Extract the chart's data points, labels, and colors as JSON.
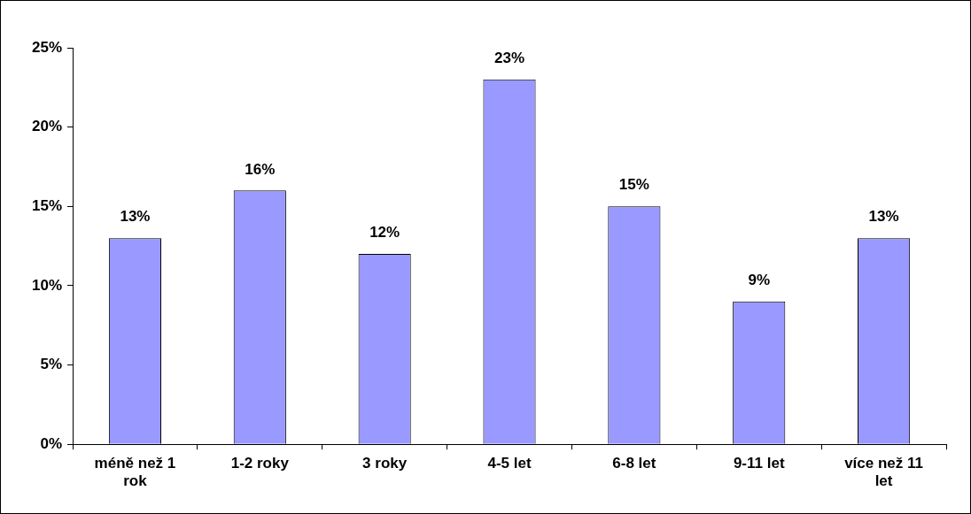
{
  "chart_data": {
    "type": "bar",
    "categories": [
      "méně než 1 rok",
      "1-2 roky",
      "3 roky",
      "4-5 let",
      "6-8 let",
      "9-11 let",
      "více než 11 let"
    ],
    "values": [
      13,
      16,
      12,
      23,
      15,
      9,
      13
    ],
    "value_labels": [
      "13%",
      "16%",
      "12%",
      "23%",
      "15%",
      "9%",
      "13%"
    ],
    "color": "#9999ff",
    "ylim": [
      0,
      25
    ],
    "yticks": [
      {
        "value": 0,
        "label": "0%"
      },
      {
        "value": 5,
        "label": "5%"
      },
      {
        "value": 10,
        "label": "10%"
      },
      {
        "value": 15,
        "label": "15%"
      },
      {
        "value": 20,
        "label": "20%"
      },
      {
        "value": 25,
        "label": "25%"
      }
    ],
    "grid": false,
    "legend": false
  }
}
